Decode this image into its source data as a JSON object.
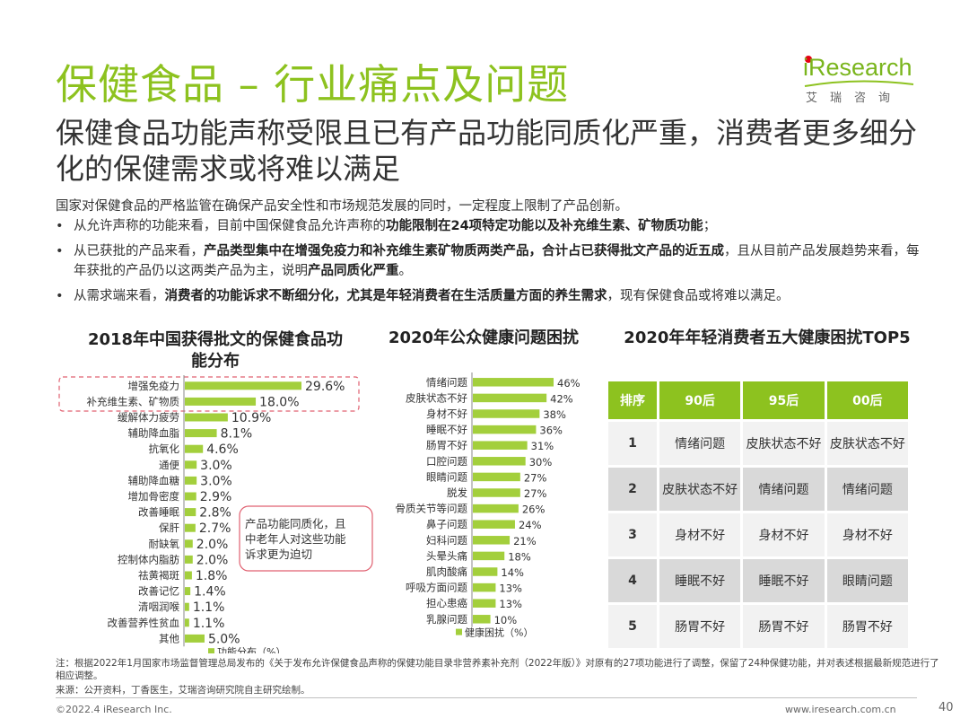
{
  "header": {
    "title": "保健食品 – 行业痛点及问题",
    "subtitle": "保健食品功能声称受限且已有产品功能同质化严重，消费者更多细分化的保健需求或将难以满足",
    "logo_text": "iResearch",
    "logo_cn": "艾瑞咨询",
    "brand_color": "#8dc21f"
  },
  "intro": "国家对保健食品的严格监管在确保产品安全性和市场规范发展的同时，一定程度上限制了产品创新。",
  "bullets": [
    {
      "a": "从允许声称的功能来看，目前中国保健食品允许声称的",
      "b": "功能限制在24项特定功能以及补充维生素、矿物质功能",
      "c": "；"
    },
    {
      "a": "从已获批的产品来看，",
      "b": "产品类型集中在增强免疫力和补充维生素矿物质两类产品，合计占已获得批文产品的近五成",
      "c": "，且从目前产品发展趋势来看，每年获批的产品仍以这两类产品为主，说明",
      "d": "产品同质化严重",
      "e": "。"
    },
    {
      "a": "从需求端来看，",
      "b": "消费者的功能诉求不断细分化，尤其是年轻消费者在生活质量方面的养生需求",
      "c": "，现有保健食品或将难以满足。"
    }
  ],
  "chart_data": [
    {
      "type": "bar",
      "orientation": "horizontal",
      "title": "2018年中国获得批文的保健食品功能分布",
      "categories": [
        "增强免疫力",
        "补充维生素、矿物质",
        "缓解体力疲劳",
        "辅助降血脂",
        "抗氧化",
        "通便",
        "辅助降血糖",
        "增加骨密度",
        "改善睡眠",
        "保肝",
        "耐缺氧",
        "控制体内脂肪",
        "祛黄褐斑",
        "改善记忆",
        "清咽润喉",
        "改善营养性贫血",
        "其他"
      ],
      "series": [
        {
          "name": "功能分布（%）",
          "values": [
            29.6,
            18.0,
            10.9,
            8.1,
            4.6,
            3.0,
            3.0,
            2.9,
            2.8,
            2.7,
            2.0,
            2.0,
            1.8,
            1.4,
            1.1,
            1.1,
            5.0
          ]
        }
      ],
      "value_labels": [
        "29.6%",
        "18.0%",
        "10.9%",
        "8.1%",
        "4.6%",
        "3.0%",
        "3.0%",
        "2.9%",
        "2.8%",
        "2.7%",
        "2.0%",
        "2.0%",
        "1.8%",
        "1.4%",
        "1.1%",
        "1.1%",
        "5.0%"
      ],
      "annotation": "产品功能同质化，且中老年人对这些功能诉求更为迫切",
      "legend": "bottom",
      "color": "#a3cf3c"
    },
    {
      "type": "bar",
      "orientation": "horizontal",
      "title": "2020年公众健康问题困扰",
      "categories": [
        "情绪问题",
        "皮肤状态不好",
        "身材不好",
        "睡眠不好",
        "肠胃不好",
        "口腔问题",
        "眼睛问题",
        "脱发",
        "骨质关节等问题",
        "鼻子问题",
        "妇科问题",
        "头晕头痛",
        "肌肉酸痛",
        "呼吸方面问题",
        "担心患癌",
        "乳腺问题"
      ],
      "series": [
        {
          "name": "健康困扰（%）",
          "values": [
            46,
            42,
            38,
            36,
            31,
            30,
            27,
            27,
            26,
            24,
            21,
            18,
            14,
            13,
            13,
            10
          ]
        }
      ],
      "value_labels": [
        "46%",
        "42%",
        "38%",
        "36%",
        "31%",
        "30%",
        "27%",
        "27%",
        "26%",
        "24%",
        "21%",
        "18%",
        "14%",
        "13%",
        "13%",
        "10%"
      ],
      "legend": "bottom",
      "color": "#a3cf3c"
    },
    {
      "type": "table",
      "title": "2020年年轻消费者五大健康困扰TOP5",
      "columns": [
        "排序",
        "90后",
        "95后",
        "00后"
      ],
      "rows": [
        [
          "1",
          "情绪问题",
          "皮肤状态不好",
          "皮肤状态不好"
        ],
        [
          "2",
          "皮肤状态不好",
          "情绪问题",
          "情绪问题"
        ],
        [
          "3",
          "身材不好",
          "身材不好",
          "身材不好"
        ],
        [
          "4",
          "睡眠不好",
          "睡眠不好",
          "眼睛问题"
        ],
        [
          "5",
          "肠胃不好",
          "肠胃不好",
          "肠胃不好"
        ]
      ]
    }
  ],
  "footer": {
    "note": "注：根据2022年1月国家市场监督管理总局发布的《关于发布允许保健食品声称的保健功能目录非营养素补充剂（2022年版）》对原有的27项功能进行了调整，保留了24种保健功能，并对表述根据最新规范进行了相应调整。",
    "source": "来源：公开资料，丁香医生，艾瑞咨询研究院自主研究绘制。",
    "copyright": "©2022.4 iResearch Inc.",
    "website": "www.iresearch.com.cn",
    "page": "40"
  }
}
